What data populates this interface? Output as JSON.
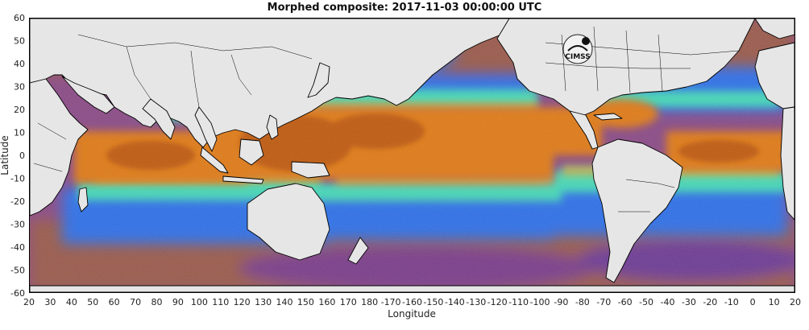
{
  "title": "Morphed composite: 2017-11-03 00:00:00 UTC",
  "axes": {
    "xlabel": "Longitude",
    "ylabel": "Latitude",
    "x_ticks": [
      "20",
      "30",
      "40",
      "50",
      "60",
      "70",
      "80",
      "90",
      "100",
      "110",
      "120",
      "130",
      "140",
      "150",
      "160",
      "170",
      "180",
      "-170",
      "-160",
      "-150",
      "-140",
      "-130",
      "-120",
      "-110",
      "-100",
      "-90",
      "-80",
      "-70",
      "-60",
      "-50",
      "-40",
      "-30",
      "-20",
      "-10",
      "0",
      "10",
      "20"
    ],
    "y_ticks": [
      "60",
      "50",
      "40",
      "30",
      "20",
      "10",
      "0",
      "-10",
      "-20",
      "-30",
      "-40",
      "-50",
      "-60"
    ]
  },
  "logo": {
    "text": "CIMSS"
  },
  "colors": {
    "land": "#e6e6e6",
    "dry": "#7e3f9a",
    "low": "#2a6fe6",
    "mid": "#3fd6c4",
    "high": "#e07a14",
    "very_high": "#c45a0a"
  }
}
